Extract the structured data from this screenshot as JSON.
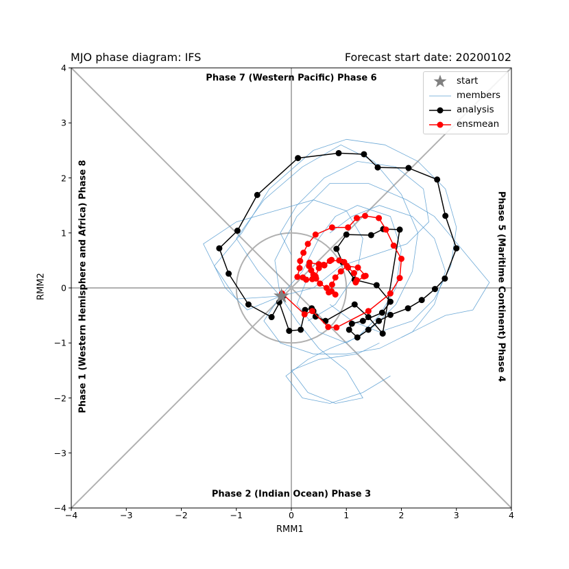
{
  "title_left": "MJO phase diagram: IFS",
  "title_right": "Forecast start date: 20200102",
  "phase_labels": {
    "top": "Phase 7 (Western Pacific) Phase 6",
    "bottom": "Phase 2 (Indian Ocean) Phase 3",
    "left": "Phase 1 (Western Hemisphere and Africa) Phase 8",
    "right": "Phase 5 (Maritime Continent) Phase 4"
  },
  "legend": [
    {
      "label": "start"
    },
    {
      "label": "members"
    },
    {
      "label": "analysis"
    },
    {
      "label": "ensmean"
    }
  ],
  "colors": {
    "start": "#808080",
    "members": "#5b9fd2",
    "analysis": "#000000",
    "ensmean": "#ff0000",
    "guides": "#b0b0b0"
  },
  "chart_data": {
    "type": "scatter",
    "xlabel": "RMM1",
    "ylabel": "RMM2",
    "xlim": [
      -4,
      4
    ],
    "ylim": [
      -4,
      4
    ],
    "xticks": [
      "−4",
      "−3",
      "−2",
      "−1",
      "0",
      "1",
      "2",
      "3",
      "4"
    ],
    "yticks": [
      "−4",
      "−3",
      "−2",
      "−1",
      "0",
      "1",
      "2",
      "3",
      "4"
    ],
    "unit_circle_radius": 1,
    "start": [
      -0.18,
      -0.15
    ],
    "series": [
      {
        "name": "analysis",
        "points": [
          [
            -0.15,
            -0.15
          ],
          [
            -0.36,
            -0.53
          ],
          [
            -0.78,
            -0.3
          ],
          [
            -1.14,
            0.26
          ],
          [
            -1.31,
            0.72
          ],
          [
            -0.98,
            1.04
          ],
          [
            -0.62,
            1.69
          ],
          [
            0.12,
            2.36
          ],
          [
            0.86,
            2.45
          ],
          [
            1.32,
            2.43
          ],
          [
            1.57,
            2.19
          ],
          [
            2.13,
            2.18
          ],
          [
            2.65,
            1.97
          ],
          [
            2.8,
            1.31
          ],
          [
            3.0,
            0.72
          ],
          [
            2.79,
            0.17
          ],
          [
            2.61,
            -0.02
          ],
          [
            2.37,
            -0.22
          ],
          [
            2.12,
            -0.37
          ],
          [
            1.8,
            -0.49
          ],
          [
            1.59,
            -0.6
          ],
          [
            1.4,
            -0.76
          ],
          [
            1.2,
            -0.9
          ],
          [
            1.05,
            -0.76
          ],
          [
            1.1,
            -0.65
          ],
          [
            1.3,
            -0.6
          ],
          [
            1.65,
            -0.45
          ],
          [
            1.8,
            -0.25
          ],
          [
            1.55,
            0.05
          ],
          [
            1.15,
            0.15
          ],
          [
            0.93,
            0.47
          ],
          [
            0.82,
            0.71
          ],
          [
            1.0,
            0.97
          ],
          [
            1.45,
            0.96
          ],
          [
            1.67,
            1.07
          ],
          [
            1.97,
            1.06
          ],
          [
            1.66,
            -0.83
          ],
          [
            1.4,
            -0.53
          ],
          [
            1.15,
            -0.3
          ],
          [
            0.62,
            -0.6
          ],
          [
            0.44,
            -0.52
          ],
          [
            0.4,
            -0.42
          ],
          [
            0.37,
            -0.37
          ],
          [
            0.25,
            -0.4
          ],
          [
            0.17,
            -0.76
          ],
          [
            -0.04,
            -0.78
          ],
          [
            -0.22,
            -0.26
          ]
        ]
      },
      {
        "name": "ensmean",
        "points": [
          [
            -0.17,
            -0.1
          ],
          [
            0.24,
            -0.48
          ],
          [
            0.38,
            -0.42
          ],
          [
            0.67,
            -0.71
          ],
          [
            0.82,
            -0.72
          ],
          [
            1.4,
            -0.42
          ],
          [
            1.8,
            -0.1
          ],
          [
            1.97,
            0.18
          ],
          [
            2.0,
            0.53
          ],
          [
            1.86,
            0.77
          ],
          [
            1.72,
            1.06
          ],
          [
            1.59,
            1.27
          ],
          [
            1.34,
            1.31
          ],
          [
            1.19,
            1.27
          ],
          [
            1.03,
            1.1
          ],
          [
            0.74,
            1.1
          ],
          [
            0.44,
            0.97
          ],
          [
            0.3,
            0.8
          ],
          [
            0.22,
            0.64
          ],
          [
            0.16,
            0.49
          ],
          [
            0.15,
            0.36
          ],
          [
            0.11,
            0.2
          ],
          [
            0.21,
            0.19
          ],
          [
            0.27,
            0.15
          ],
          [
            0.38,
            0.16
          ],
          [
            0.44,
            0.21
          ],
          [
            0.5,
            0.36
          ],
          [
            0.59,
            0.42
          ],
          [
            0.7,
            0.49
          ],
          [
            0.87,
            0.5
          ],
          [
            0.96,
            0.47
          ],
          [
            1.03,
            0.37
          ],
          [
            1.14,
            0.27
          ],
          [
            1.19,
            0.14
          ],
          [
            1.17,
            0.1
          ],
          [
            1.32,
            0.21
          ],
          [
            1.35,
            0.22
          ],
          [
            1.21,
            0.37
          ],
          [
            1.01,
            0.4
          ],
          [
            0.9,
            0.3
          ],
          [
            0.8,
            0.19
          ],
          [
            0.74,
            0.06
          ],
          [
            0.73,
            -0.06
          ],
          [
            0.8,
            -0.12
          ],
          [
            0.68,
            -0.08
          ],
          [
            0.64,
            0.0
          ],
          [
            0.52,
            0.08
          ],
          [
            0.45,
            0.17
          ],
          [
            0.4,
            0.24
          ],
          [
            0.36,
            0.32
          ],
          [
            0.32,
            0.4
          ],
          [
            0.33,
            0.46
          ],
          [
            0.5,
            0.43
          ],
          [
            0.6,
            0.41
          ],
          [
            0.73,
            0.51
          ]
        ]
      },
      {
        "name": "members",
        "paths": [
          [
            [
              -0.2,
              -0.15
            ],
            [
              -0.6,
              0.3
            ],
            [
              -1.0,
              0.9
            ],
            [
              -0.5,
              1.6
            ],
            [
              0.2,
              2.2
            ],
            [
              0.9,
              2.6
            ],
            [
              1.5,
              2.3
            ],
            [
              2.0,
              1.7
            ],
            [
              2.3,
              1.0
            ],
            [
              2.2,
              0.3
            ],
            [
              1.9,
              -0.3
            ],
            [
              1.5,
              -0.7
            ],
            [
              1.0,
              -1.0
            ],
            [
              0.5,
              -0.8
            ],
            [
              0.1,
              -0.3
            ],
            [
              0.3,
              0.2
            ]
          ],
          [
            [
              -0.2,
              -0.15
            ],
            [
              -0.3,
              0.5
            ],
            [
              0.1,
              1.3
            ],
            [
              0.7,
              1.9
            ],
            [
              1.4,
              1.9
            ],
            [
              2.1,
              1.6
            ],
            [
              2.6,
              1.3
            ],
            [
              3.1,
              0.7
            ],
            [
              3.6,
              0.1
            ],
            [
              3.3,
              -0.4
            ],
            [
              2.8,
              -0.5
            ],
            [
              2.4,
              -0.7
            ],
            [
              2.0,
              -0.9
            ]
          ],
          [
            [
              -0.2,
              -0.15
            ],
            [
              -0.8,
              -0.4
            ],
            [
              -1.2,
              0.0
            ],
            [
              -1.6,
              0.8
            ],
            [
              -1.0,
              1.2
            ],
            [
              -0.3,
              1.4
            ],
            [
              0.4,
              1.6
            ],
            [
              1.0,
              1.4
            ],
            [
              1.3,
              0.9
            ],
            [
              1.2,
              0.3
            ],
            [
              0.8,
              -0.3
            ],
            [
              0.3,
              -0.6
            ]
          ],
          [
            [
              -0.2,
              -0.15
            ],
            [
              0.1,
              -0.6
            ],
            [
              0.5,
              -1.1
            ],
            [
              1.0,
              -1.5
            ],
            [
              1.3,
              -2.0
            ],
            [
              0.8,
              -2.1
            ],
            [
              0.3,
              -1.9
            ],
            [
              0.0,
              -1.5
            ],
            [
              0.5,
              -1.3
            ],
            [
              1.2,
              -1.2
            ],
            [
              1.6,
              -1.0
            ]
          ],
          [
            [
              -0.2,
              -0.15
            ],
            [
              0.4,
              0.0
            ],
            [
              0.9,
              0.4
            ],
            [
              1.5,
              0.6
            ],
            [
              2.1,
              0.8
            ],
            [
              2.5,
              1.2
            ],
            [
              2.4,
              1.8
            ],
            [
              1.9,
              2.2
            ],
            [
              1.2,
              2.3
            ],
            [
              0.6,
              2.0
            ],
            [
              0.1,
              1.5
            ],
            [
              -0.2,
              1.0
            ],
            [
              0.0,
              0.6
            ]
          ],
          [
            [
              -0.2,
              -0.15
            ],
            [
              -1.0,
              -0.2
            ],
            [
              -1.4,
              0.4
            ],
            [
              -0.9,
              1.0
            ],
            [
              -0.4,
              1.8
            ],
            [
              0.4,
              2.5
            ],
            [
              1.0,
              2.7
            ],
            [
              1.7,
              2.6
            ],
            [
              2.3,
              2.3
            ],
            [
              2.8,
              1.8
            ],
            [
              3.0,
              1.1
            ],
            [
              2.9,
              0.4
            ],
            [
              2.6,
              -0.2
            ],
            [
              2.2,
              -0.6
            ],
            [
              1.6,
              -0.8
            ],
            [
              1.1,
              -0.6
            ],
            [
              0.7,
              -0.3
            ]
          ],
          [
            [
              -0.2,
              -0.15
            ],
            [
              0.2,
              0.3
            ],
            [
              0.5,
              0.9
            ],
            [
              0.8,
              1.3
            ],
            [
              1.2,
              1.5
            ],
            [
              1.8,
              1.3
            ],
            [
              2.0,
              0.7
            ],
            [
              1.9,
              0.0
            ],
            [
              1.6,
              -0.5
            ],
            [
              1.2,
              -0.9
            ],
            [
              0.7,
              -1.1
            ],
            [
              0.3,
              -1.3
            ],
            [
              -0.1,
              -1.6
            ],
            [
              0.2,
              -2.0
            ],
            [
              0.7,
              -2.1
            ],
            [
              1.3,
              -1.9
            ],
            [
              1.8,
              -1.6
            ]
          ],
          [
            [
              -0.2,
              -0.15
            ],
            [
              -0.5,
              -0.6
            ],
            [
              -0.2,
              -1.0
            ],
            [
              0.4,
              -1.2
            ],
            [
              1.0,
              -1.2
            ],
            [
              1.6,
              -1.1
            ],
            [
              2.2,
              -0.8
            ],
            [
              2.6,
              -0.3
            ],
            [
              2.8,
              0.3
            ],
            [
              2.6,
              0.9
            ],
            [
              2.2,
              1.3
            ],
            [
              1.6,
              1.5
            ],
            [
              1.1,
              1.3
            ],
            [
              0.7,
              1.0
            ]
          ]
        ]
      }
    ]
  }
}
